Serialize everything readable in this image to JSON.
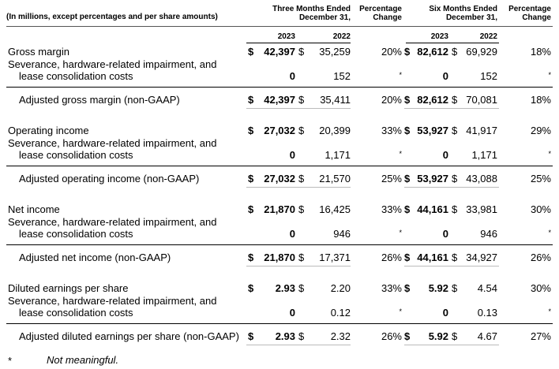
{
  "header": {
    "units_note": "(In millions, except percentages and per share amounts)",
    "three_months_line1": "Three Months Ended",
    "three_months_line2": "December 31,",
    "pct_change_line1": "Percentage",
    "pct_change_line2": "Change",
    "six_months_line1": "Six Months Ended",
    "six_months_line2": "December 31,",
    "pct_change2_line1": "Percentage",
    "pct_change2_line2": "Change"
  },
  "years": {
    "y1": "2023",
    "y2": "2022",
    "y3": "2023",
    "y4": "2022"
  },
  "currency": "$",
  "star": "*",
  "sections": [
    {
      "label": "Gross margin",
      "q23": "42,397",
      "q22": "35,259",
      "qpct": "20%",
      "h23": "82,612",
      "h22": "69,929",
      "hpct": "18%",
      "adj_label_l1": "Severance, hardware-related impairment, and",
      "adj_label_l2": "lease consolidation costs",
      "adj_q23": "0",
      "adj_q22": "152",
      "adj_h23": "0",
      "adj_h22": "152",
      "total_label": "Adjusted gross margin (non-GAAP)",
      "t_q23": "42,397",
      "t_q22": "35,411",
      "t_qpct": "20%",
      "t_h23": "82,612",
      "t_h22": "70,081",
      "t_hpct": "18%"
    },
    {
      "label": "Operating income",
      "q23": "27,032",
      "q22": "20,399",
      "qpct": "33%",
      "h23": "53,927",
      "h22": "41,917",
      "hpct": "29%",
      "adj_label_l1": "Severance, hardware-related impairment, and",
      "adj_label_l2": "lease consolidation costs",
      "adj_q23": "0",
      "adj_q22": "1,171",
      "adj_h23": "0",
      "adj_h22": "1,171",
      "total_label": "Adjusted operating income (non-GAAP)",
      "t_q23": "27,032",
      "t_q22": "21,570",
      "t_qpct": "25%",
      "t_h23": "53,927",
      "t_h22": "43,088",
      "t_hpct": "25%"
    },
    {
      "label": "Net income",
      "q23": "21,870",
      "q22": "16,425",
      "qpct": "33%",
      "h23": "44,161",
      "h22": "33,981",
      "hpct": "30%",
      "adj_label_l1": "Severance, hardware-related impairment, and",
      "adj_label_l2": "lease consolidation costs",
      "adj_q23": "0",
      "adj_q22": "946",
      "adj_h23": "0",
      "adj_h22": "946",
      "total_label": "Adjusted net income (non-GAAP)",
      "t_q23": "21,870",
      "t_q22": "17,371",
      "t_qpct": "26%",
      "t_h23": "44,161",
      "t_h22": "34,927",
      "t_hpct": "26%"
    },
    {
      "label": "Diluted earnings per share",
      "q23": "2.93",
      "q22": "2.20",
      "qpct": "33%",
      "h23": "5.92",
      "h22": "4.54",
      "hpct": "30%",
      "adj_label_l1": "Severance, hardware-related impairment, and",
      "adj_label_l2": "lease consolidation costs",
      "adj_q23": "0",
      "adj_q22": "0.12",
      "adj_h23": "0",
      "adj_h22": "0.13",
      "total_label": "Adjusted diluted earnings per share (non-GAAP)",
      "t_q23": "2.93",
      "t_q22": "2.32",
      "t_qpct": "26%",
      "t_h23": "5.92",
      "t_h22": "4.67",
      "t_hpct": "27%"
    }
  ],
  "footnote": {
    "symbol": "*",
    "text": "Not meaningful."
  }
}
